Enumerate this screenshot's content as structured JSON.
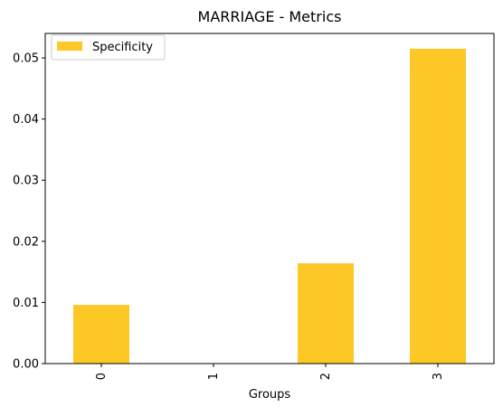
{
  "chart_data": {
    "type": "bar",
    "title": "MARRIAGE - Metrics",
    "xlabel": "Groups",
    "ylabel": "",
    "categories": [
      "0",
      "1",
      "2",
      "3"
    ],
    "series": [
      {
        "name": "Specificity",
        "values": [
          0.0096,
          0.0,
          0.0164,
          0.0515
        ],
        "color": "#fdc825"
      }
    ],
    "ylim": [
      0,
      0.054
    ],
    "yticks": [
      0.0,
      0.01,
      0.02,
      0.03,
      0.04,
      0.05
    ],
    "ytick_labels": [
      "0.00",
      "0.01",
      "0.02",
      "0.03",
      "0.04",
      "0.05"
    ],
    "grid": false,
    "legend": "top-left"
  }
}
